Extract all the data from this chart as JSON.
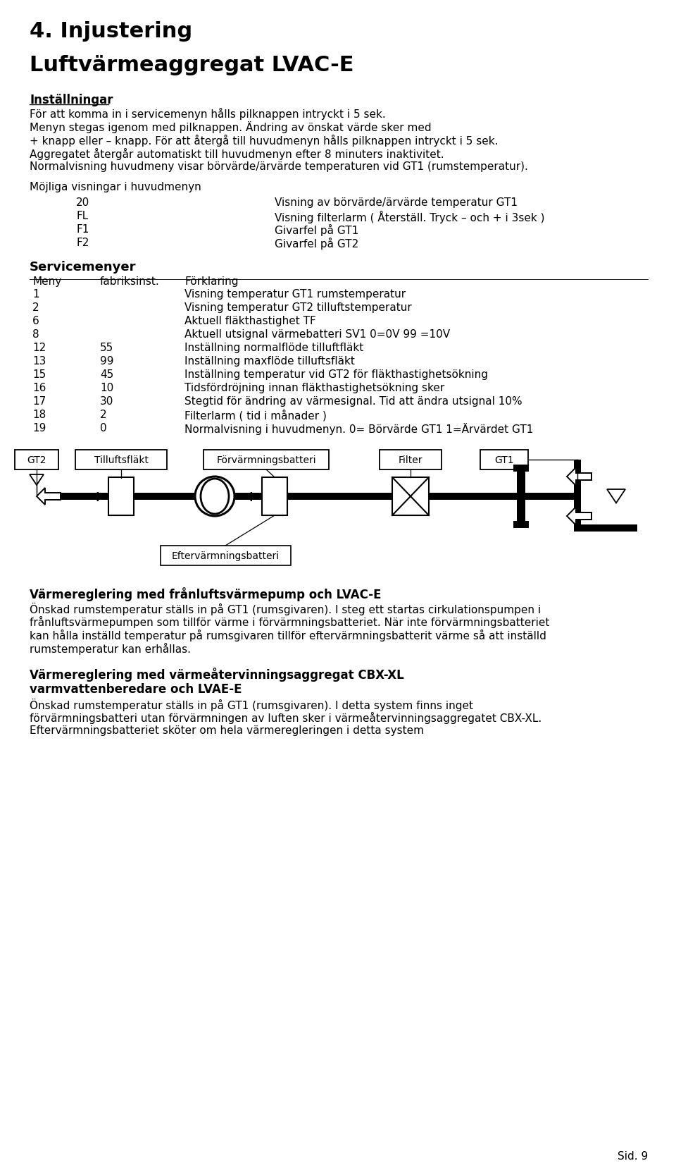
{
  "title1": "4. Injustering",
  "title2": "Luftvärmeaggregat LVAC-E",
  "s1_head": "Inställningar",
  "s1_lines": [
    "För att komma in i servicemenyn hålls pilknappen intryckt i 5 sek.",
    "Menyn stegas igenom med pilknappen. Ändring av önskat värde sker med",
    "+ knapp eller – knapp. För att återgå till huvudmenyn hålls pilknappen intryckt i 5 sek.",
    "Aggregatet återgår automatiskt till huvudmenyn efter 8 minuters inaktivitet.",
    "Normalvisning huvudmeny visar börvärde/ärvärde temperaturen vid GT1 (rumstemperatur)."
  ],
  "s2_head": "Möjliga visningar i huvudmenyn",
  "menu_items": [
    [
      "20",
      "Visning av börvärde/ärvärde temperatur GT1"
    ],
    [
      "FL",
      "Visning filterlarm ( Återställ. Tryck – och + i 3sek )"
    ],
    [
      "F1",
      "Givarfel på GT1"
    ],
    [
      "F2",
      "Givarfel på GT2"
    ]
  ],
  "s3_head": "Servicemenyer",
  "tbl_hdr": [
    "Meny",
    "fabriksinst.",
    "Förklaring"
  ],
  "tbl_rows": [
    [
      "1",
      "",
      "Visning temperatur GT1 rumstemperatur"
    ],
    [
      "2",
      "",
      "Visning temperatur GT2 tilluftstemperatur"
    ],
    [
      "6",
      "",
      "Aktuell fläkthastighet TF"
    ],
    [
      "8",
      "",
      "Aktuell utsignal värmebatteri SV1 0=0V 99 =10V"
    ],
    [
      "12",
      "55",
      "Inställning normalflöde tilluftfläkt"
    ],
    [
      "13",
      "99",
      "Inställning maxflöde tilluftsfläkt"
    ],
    [
      "15",
      "45",
      "Inställning temperatur vid GT2 för fläkthastighetsökning"
    ],
    [
      "16",
      "10",
      "Tidsfördröjning innan fläkthastighetsökning sker"
    ],
    [
      "17",
      "30",
      "Stegtid för ändring av värmesignal. Tid att ändra utsignal 10%"
    ],
    [
      "18",
      "2",
      "Filterlarm ( tid i månader )"
    ],
    [
      "19",
      "0",
      "Normalvisning i huvudmenyn. 0= Börvärde GT1 1=Ärvärdet GT1"
    ]
  ],
  "s4_head": "Värmereglering med frånluftsvärmepump och LVAC-E",
  "s4_lines": [
    "Önskad rumstemperatur ställs in på GT1 (rumsgivaren). I steg ett startas cirkulationspumpen i",
    "frånluftsvärmepumpen som tillför värme i förvärmningsbatteriet. När inte förvärmningsbatteriet",
    "kan hålla inställd temperatur på rumsgivaren tillför eftervärmningsbatterit värme så att inställd",
    "rumstemperatur kan erhållas."
  ],
  "s5_head1": "Värmereglering med värmeåtervinningsaggregat CBX-XL",
  "s5_head2": "varmvattenberedare och LVAE-E",
  "s5_lines": [
    "Önskad rumstemperatur ställs in på GT1 (rumsgivaren). I detta system finns inget",
    "förvärmningsbatteri utan förvärmningen av luften sker i värmeåtervinningsaggregatet CBX-XL.",
    "Eftervärmningsbatteriet sköter om hela värmeregleringen i detta system"
  ],
  "footer": "Sid. 9",
  "ev_label": "Eftervärmningsbatteri"
}
